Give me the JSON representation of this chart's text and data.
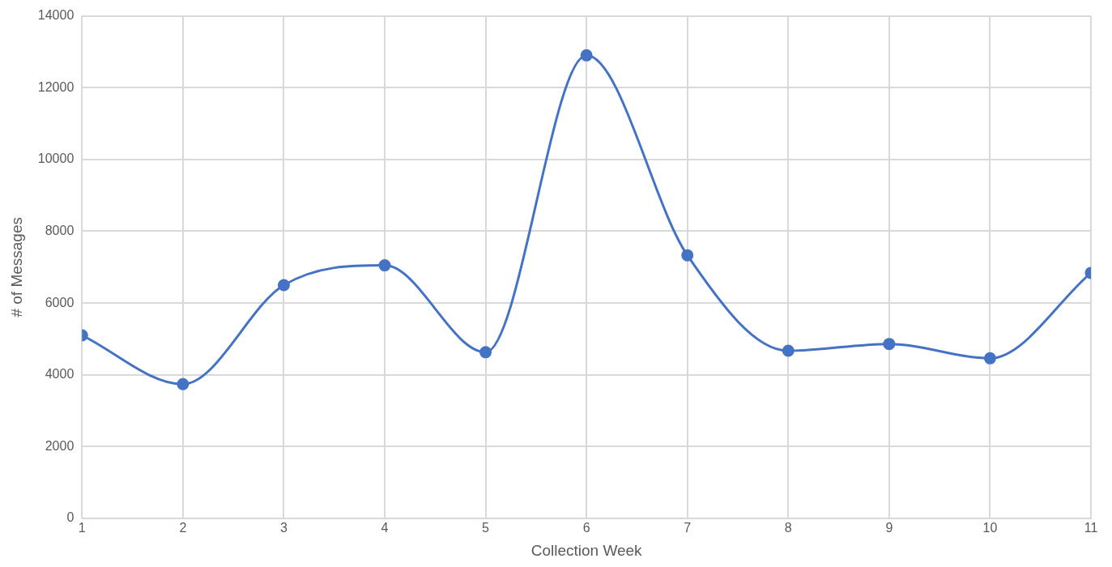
{
  "chart_data": {
    "type": "line",
    "xlabel": "Collection Week",
    "ylabel": "# of Messages",
    "x": [
      1,
      2,
      3,
      4,
      5,
      6,
      7,
      8,
      9,
      10,
      11
    ],
    "series": [
      {
        "color": "#4472c4",
        "values": [
          5100,
          3740,
          6500,
          7050,
          4630,
          12900,
          7330,
          4670,
          4860,
          4460,
          6840
        ]
      }
    ],
    "xlim": [
      1,
      11
    ],
    "xticks": [
      1,
      2,
      3,
      4,
      5,
      6,
      7,
      8,
      9,
      10,
      11
    ],
    "ylim": [
      0,
      14000
    ],
    "yticks": [
      0,
      2000,
      4000,
      6000,
      8000,
      10000,
      12000,
      14000
    ],
    "grid": true,
    "marker": "circle",
    "line_style": "solid"
  }
}
